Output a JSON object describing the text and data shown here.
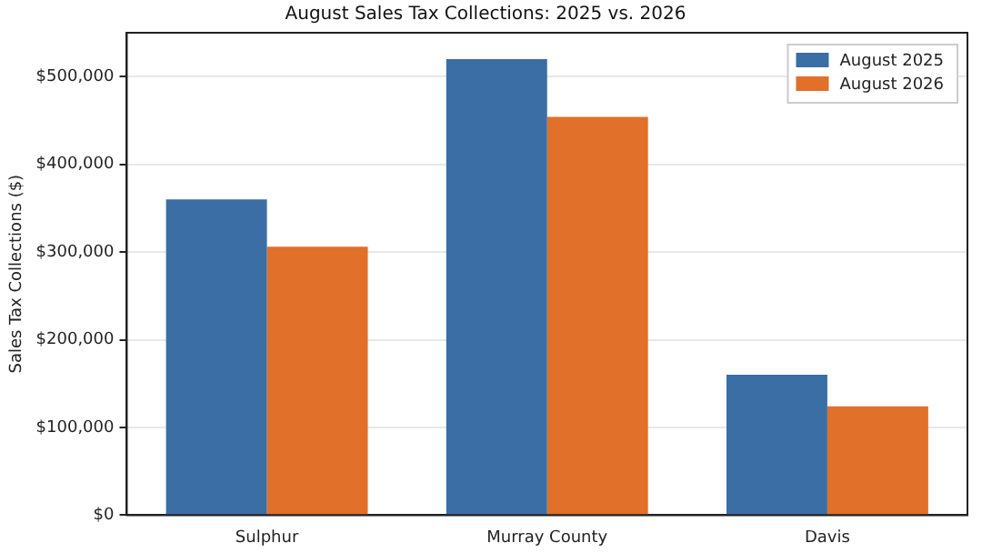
{
  "chart_data": {
    "type": "bar",
    "title": "August Sales Tax Collections: 2025 vs. 2026",
    "ylabel": "Sales Tax Collections ($)",
    "categories": [
      "Sulphur",
      "Murray County",
      "Davis"
    ],
    "series": [
      {
        "name": "August 2025",
        "color": "#3a6ea5",
        "values": [
          360000,
          520000,
          160000
        ]
      },
      {
        "name": "August 2026",
        "color": "#e0702a",
        "values": [
          306000,
          454000,
          124000
        ]
      }
    ],
    "ylim": [
      0,
      550000
    ],
    "yticks": [
      {
        "value": 0,
        "label": "$0"
      },
      {
        "value": 100000,
        "label": "$100,000"
      },
      {
        "value": 200000,
        "label": "$200,000"
      },
      {
        "value": 300000,
        "label": "$300,000"
      },
      {
        "value": 400000,
        "label": "$400,000"
      },
      {
        "value": 500000,
        "label": "$500,000"
      }
    ],
    "grid": "y",
    "legend": "top right"
  }
}
